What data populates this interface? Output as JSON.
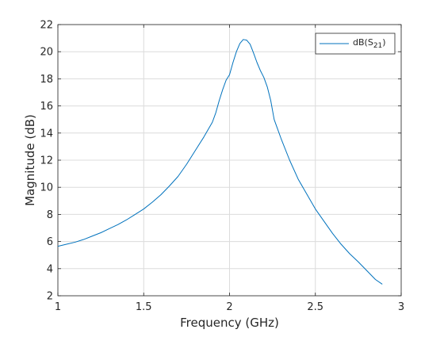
{
  "chart_data": {
    "type": "line",
    "xlabel": "Frequency (GHz)",
    "ylabel": "Magnitude (dB)",
    "xlim": [
      1,
      3
    ],
    "ylim": [
      2,
      22
    ],
    "xticks": [
      1,
      1.5,
      2,
      2.5,
      3
    ],
    "xtick_labels": [
      "1",
      "1.5",
      "2",
      "2.5",
      "3"
    ],
    "yticks": [
      2,
      4,
      6,
      8,
      10,
      12,
      14,
      16,
      18,
      20,
      22
    ],
    "ytick_labels": [
      "2",
      "4",
      "6",
      "8",
      "10",
      "12",
      "14",
      "16",
      "18",
      "20",
      "22"
    ],
    "grid": true,
    "legend_position": "top-right",
    "legend": {
      "base": "dB(S",
      "subscript": "21",
      "suffix": ")"
    },
    "series": [
      {
        "color": "#0072BD",
        "x": [
          1.0,
          1.05,
          1.1,
          1.15,
          1.2,
          1.25,
          1.3,
          1.35,
          1.4,
          1.45,
          1.5,
          1.55,
          1.6,
          1.65,
          1.7,
          1.75,
          1.8,
          1.85,
          1.9,
          1.92,
          1.94,
          1.96,
          1.98,
          2.0,
          2.02,
          2.04,
          2.06,
          2.08,
          2.1,
          2.12,
          2.14,
          2.16,
          2.18,
          2.2,
          2.22,
          2.24,
          2.26,
          2.28,
          2.3,
          2.35,
          2.4,
          2.45,
          2.5,
          2.55,
          2.6,
          2.65,
          2.7,
          2.75,
          2.8,
          2.85,
          2.89
        ],
        "y": [
          5.65,
          5.8,
          5.95,
          6.15,
          6.4,
          6.65,
          6.95,
          7.25,
          7.6,
          8.0,
          8.4,
          8.9,
          9.45,
          10.1,
          10.8,
          11.7,
          12.7,
          13.7,
          14.8,
          15.5,
          16.4,
          17.2,
          17.9,
          18.3,
          19.2,
          20.0,
          20.6,
          20.9,
          20.85,
          20.55,
          19.9,
          19.2,
          18.6,
          18.1,
          17.4,
          16.4,
          15.0,
          14.3,
          13.6,
          12.0,
          10.6,
          9.5,
          8.4,
          7.5,
          6.6,
          5.8,
          5.1,
          4.5,
          3.85,
          3.2,
          2.85
        ]
      }
    ]
  }
}
